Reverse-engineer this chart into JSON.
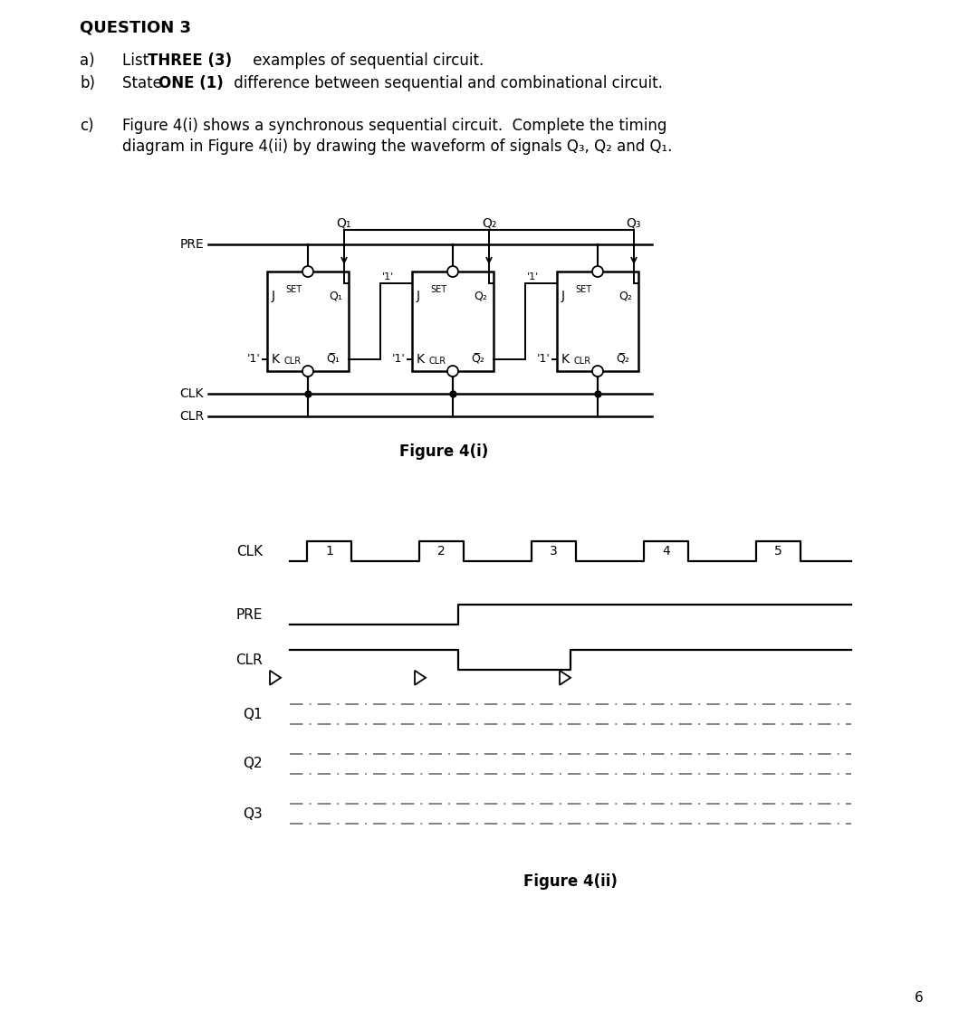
{
  "title": "QUESTION 3",
  "background_color": "#ffffff",
  "text_color": "#000000",
  "line_color": "#000000",
  "page_number": "6",
  "fig4i_label": "Figure 4(i)",
  "fig4ii_label": "Figure 4(ii)"
}
